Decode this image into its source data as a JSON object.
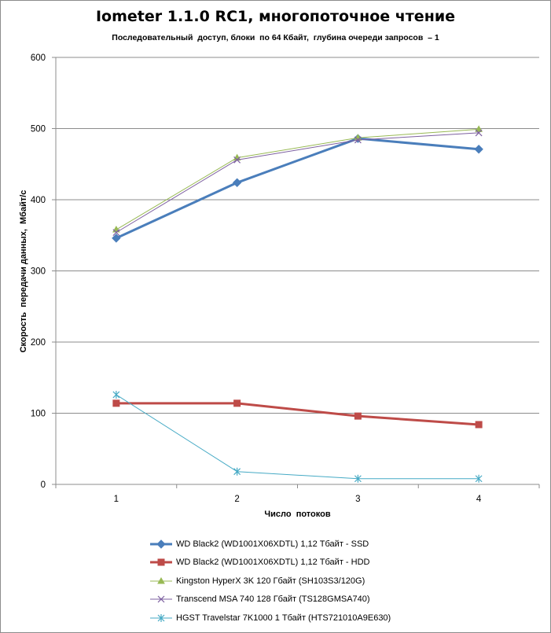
{
  "chart_data": {
    "type": "line",
    "title": "Iometer 1.1.0 RC1, многопоточное чтение",
    "subtitle": "Последовательный  доступ, блоки  по 64 Кбайт,  глубина очереди запросов  – 1",
    "xlabel": "Число  потоков",
    "ylabel": "Скорость  передачи данных,  Мбайт/с",
    "categories": [
      "1",
      "2",
      "3",
      "4"
    ],
    "ylim": [
      0,
      600
    ],
    "yticks": [
      "0",
      "100",
      "200",
      "300",
      "400",
      "500",
      "600"
    ],
    "grid": true,
    "legend_position": "bottom",
    "series": [
      {
        "name": "WD Black2 (WD1001X06XDTL) 1,12 Тбайт - SSD",
        "values": [
          346,
          424,
          486,
          471
        ],
        "color": "#4a7ebb",
        "marker": "diamond",
        "width": 3
      },
      {
        "name": "WD Black2 (WD1001X06XDTL) 1,12 Тбайт - HDD",
        "values": [
          114,
          114,
          96,
          84
        ],
        "color": "#be4b48",
        "marker": "square",
        "width": 3
      },
      {
        "name": "Kingston HyperX 3K 120 Гбайт (SH103S3/120G)",
        "values": [
          358,
          459,
          487,
          499
        ],
        "color": "#98b954",
        "marker": "triangle",
        "width": 1
      },
      {
        "name": "Transcend MSA 740 128 Гбайт (TS128GMSA740)",
        "values": [
          354,
          456,
          484,
          494
        ],
        "color": "#7d60a0",
        "marker": "x",
        "width": 1
      },
      {
        "name": "HGST Travelstar 7K1000 1 Тбайт (HTS721010A9E630)",
        "values": [
          126,
          18,
          8,
          8
        ],
        "color": "#46aac5",
        "marker": "star",
        "width": 1
      }
    ]
  }
}
